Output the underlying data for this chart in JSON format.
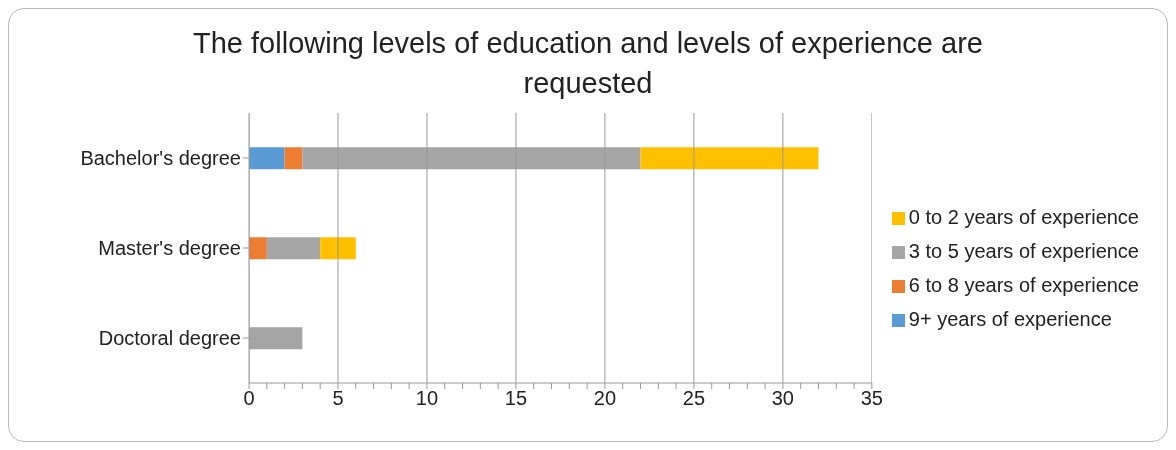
{
  "chart_data": {
    "type": "bar",
    "orientation": "horizontal",
    "stacked": true,
    "title": "The following levels of education and levels of experience are requested",
    "categories": [
      "Bachelor's degree",
      "Master's degree",
      "Doctoral degree"
    ],
    "series": [
      {
        "name": "9+ years of experience",
        "color": "#5b9bd5",
        "values": [
          2,
          0,
          0
        ]
      },
      {
        "name": "6 to 8 years of experience",
        "color": "#ed7d31",
        "values": [
          1,
          1,
          0
        ]
      },
      {
        "name": "3 to 5 years of experience",
        "color": "#a5a5a5",
        "values": [
          19,
          3,
          3
        ]
      },
      {
        "name": "0 to 2 years of experience",
        "color": "#ffc000",
        "values": [
          10,
          2,
          0
        ]
      }
    ],
    "xlim": [
      0,
      35
    ],
    "xticks": [
      0,
      {
        "value": 1,
        "label": null
      },
      {
        "value": 2,
        "label": null
      },
      {
        "value": 3,
        "label": null
      },
      {
        "value": 4,
        "label": null
      },
      5,
      {
        "value": 6,
        "label": null
      },
      {
        "value": 7,
        "label": null
      },
      {
        "value": 8,
        "label": null
      },
      {
        "value": 9,
        "label": null
      },
      10,
      {
        "value": 11,
        "label": null
      },
      {
        "value": 12,
        "label": null
      },
      {
        "value": 13,
        "label": null
      },
      {
        "value": 14,
        "label": null
      },
      15,
      {
        "value": 16,
        "label": null
      },
      {
        "value": 17,
        "label": null
      },
      {
        "value": 18,
        "label": null
      },
      {
        "value": 19,
        "label": null
      },
      20,
      {
        "value": 21,
        "label": null
      },
      {
        "value": 22,
        "label": null
      },
      {
        "value": 23,
        "label": null
      },
      {
        "value": 24,
        "label": null
      },
      25,
      {
        "value": 26,
        "label": null
      },
      {
        "value": 27,
        "label": null
      },
      {
        "value": 28,
        "label": null
      },
      {
        "value": 29,
        "label": null
      },
      30,
      {
        "value": 31,
        "label": null
      },
      {
        "value": 32,
        "label": null
      },
      {
        "value": 33,
        "label": null
      },
      {
        "value": 34,
        "label": null
      },
      35
    ],
    "grid": "x",
    "legend": "right"
  }
}
